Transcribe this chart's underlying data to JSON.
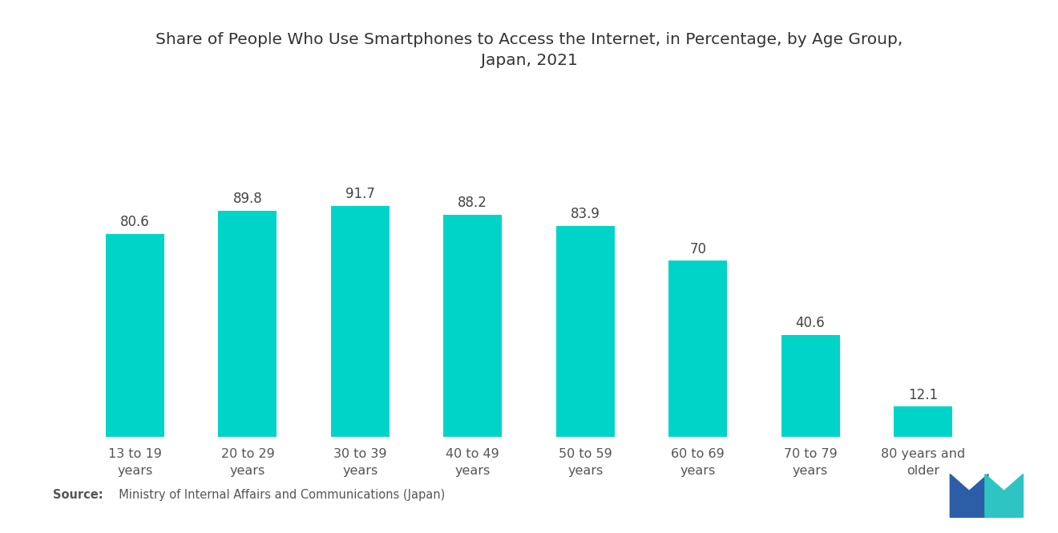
{
  "title": "Share of People Who Use Smartphones to Access the Internet, in Percentage, by Age Group,\nJapan, 2021",
  "categories": [
    "13 to 19\nyears",
    "20 to 29\nyears",
    "30 to 39\nyears",
    "40 to 49\nyears",
    "50 to 59\nyears",
    "60 to 69\nyears",
    "70 to 79\nyears",
    "80 years and\nolder"
  ],
  "values": [
    80.6,
    89.8,
    91.7,
    88.2,
    83.9,
    70,
    40.6,
    12.1
  ],
  "bar_color": "#00D4C8",
  "background_color": "#ffffff",
  "title_fontsize": 14.5,
  "label_fontsize": 11.5,
  "value_fontsize": 12,
  "source_bold": "Source:",
  "source_rest": "  Ministry of Internal Affairs and Communications (Japan)",
  "ylim": [
    0,
    110
  ]
}
